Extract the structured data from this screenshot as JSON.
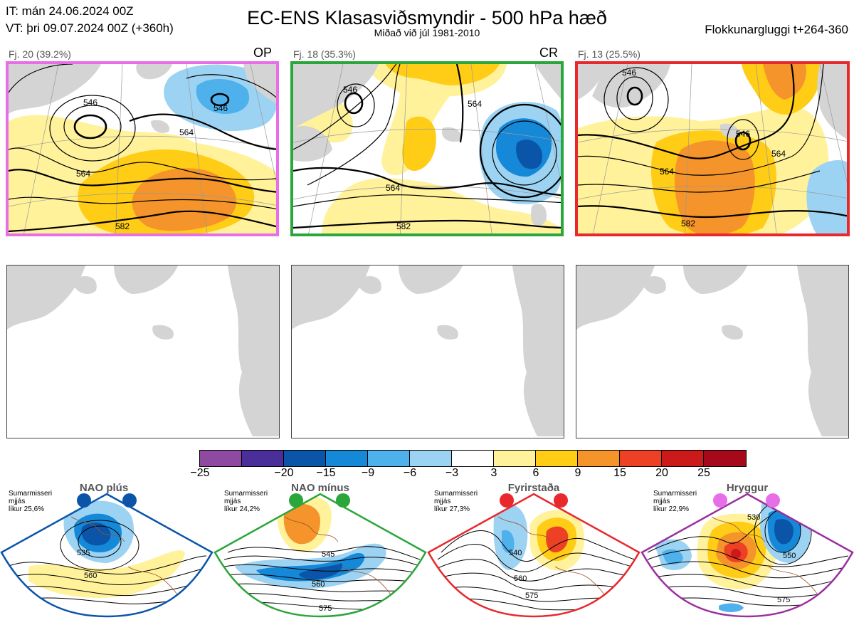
{
  "header": {
    "init_time": "IT: mán 24.06.2024 00Z",
    "valid_time": "VT: þri 09.07.2024 00Z  (+360h)",
    "title": "EC-ENS Klasasviðsmyndir - 500 hPa hæð",
    "subtitle": "Miðað við júl 1981-2010",
    "window": "Flokkunargluggi t+264-360"
  },
  "clusters": [
    {
      "label": "Fj. 20 (39.2%)",
      "tag": "OP",
      "border_color": "#e86ee8",
      "contours": [
        "546",
        "564",
        "582",
        "546",
        "564"
      ]
    },
    {
      "label": "Fj. 18 (35.3%)",
      "tag": "CR",
      "border_color": "#2aa63a",
      "contours": [
        "546",
        "564",
        "582",
        "564"
      ]
    },
    {
      "label": "Fj. 13 (25.5%)",
      "tag": "",
      "border_color": "#e8282c",
      "contours": [
        "546",
        "546",
        "564",
        "582",
        "564"
      ]
    }
  ],
  "colorbar": {
    "colors": [
      "#8e4aa0",
      "#4a2f9a",
      "#0b55a8",
      "#1588d8",
      "#4fb1ec",
      "#9cd3f3",
      "#ffffff",
      "#fff29a",
      "#ffcc16",
      "#f5942a",
      "#ee4025",
      "#cc1a1a",
      "#a5091a"
    ],
    "ticks": [
      "−25",
      "−20",
      "−15",
      "−9",
      "−6",
      "−3",
      "3",
      "6",
      "9",
      "15",
      "20",
      "25"
    ]
  },
  "regimes": [
    {
      "name": "NAO plús",
      "note": [
        "Sumarmisseri",
        "mjjás",
        "líkur 25,6%"
      ],
      "color": "#0b55a8",
      "contours": [
        "535",
        "560"
      ]
    },
    {
      "name": "NAO mínus",
      "note": [
        "Sumarmisseri",
        "mjjás",
        "líkur 24,2%"
      ],
      "color": "#2aa63a",
      "contours": [
        "545",
        "560",
        "575"
      ]
    },
    {
      "name": "Fyrirstaða",
      "note": [
        "Sumarmisseri",
        "mjjás",
        "líkur 27,3%"
      ],
      "color": "#e8282c",
      "contours": [
        "540",
        "560",
        "575"
      ]
    },
    {
      "name": "Hryggur",
      "note": [
        "Sumarmisseri",
        "mjjás",
        "líkur 22,9%"
      ],
      "color": "#9a2fa0",
      "dot_color": "#e86ee8",
      "contours": [
        "530",
        "550",
        "575"
      ]
    }
  ]
}
